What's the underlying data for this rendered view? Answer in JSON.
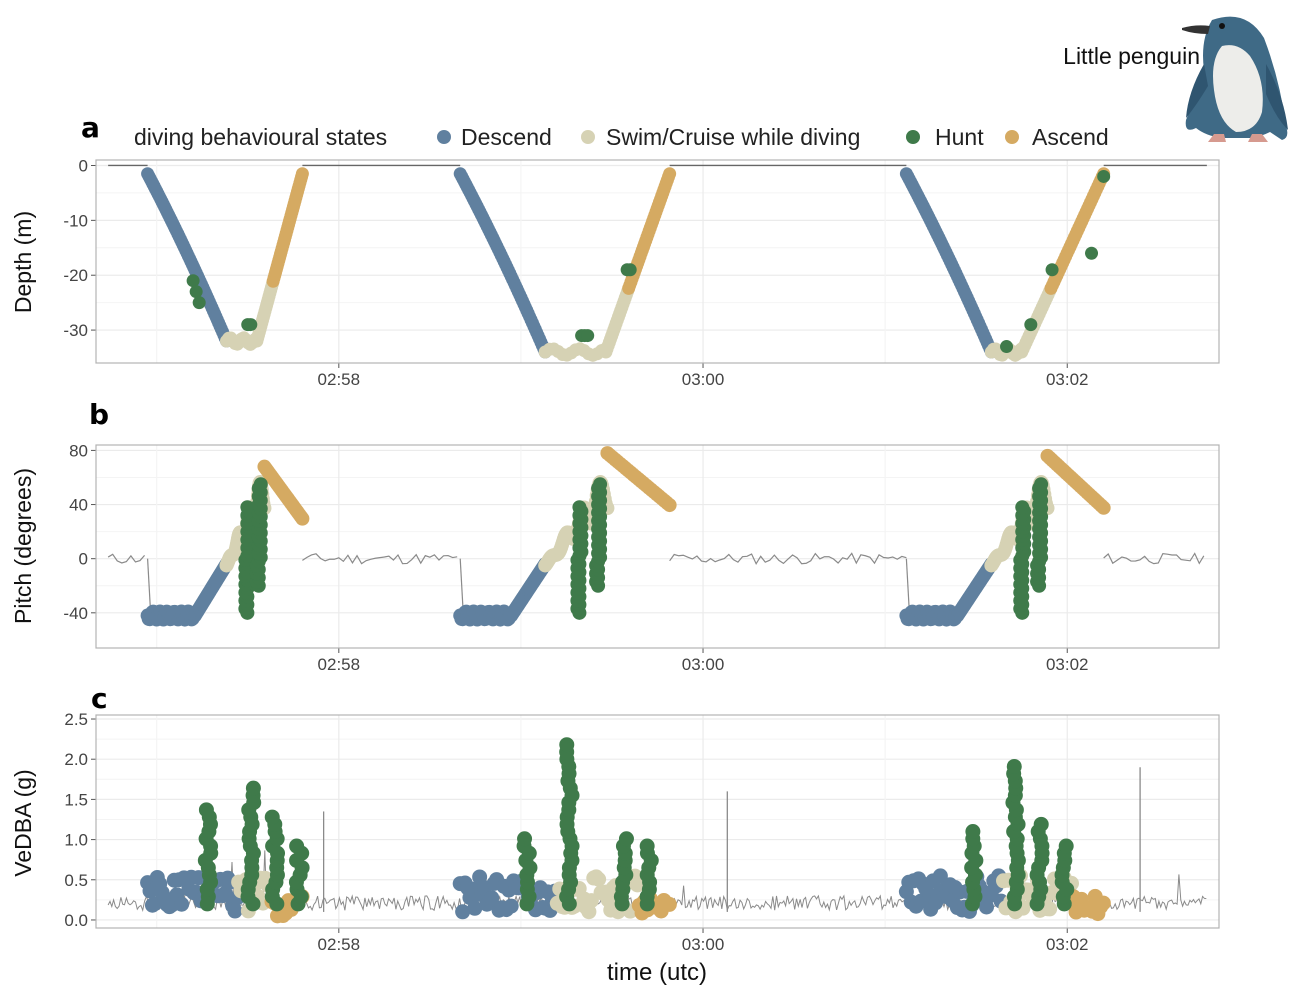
{
  "figure": {
    "legend_title": "diving behavioural states",
    "species_label": "Little penguin",
    "xlabel": "time (utc)"
  },
  "colors": {
    "Descend": "#60809f",
    "Swim/Cruise while diving": "#d6d2b4",
    "Hunt": "#3f7a4a",
    "Ascend": "#d5aa62",
    "trace": "#8a8a8a",
    "grid": "#ebebeb",
    "border": "#b3b3b3"
  },
  "x_ticks": [
    "02:58",
    "03:00",
    "03:02"
  ],
  "chart_data": [
    {
      "panel": "a",
      "type": "scatter",
      "ylabel": "Depth (m)",
      "ylim": [
        -36,
        1
      ],
      "yticks": [
        0,
        -10,
        -20,
        -30
      ],
      "xlim": [
        "02:56:40",
        "03:02:50"
      ],
      "legend": [
        "Descend",
        "Swim/Cruise while diving",
        "Hunt",
        "Ascend"
      ],
      "legend_position": "top",
      "surface_trace": [
        [
          0,
          0
        ],
        [
          1,
          0
        ],
        [
          2,
          0
        ],
        [
          3,
          0
        ],
        [
          4,
          0
        ],
        [
          5,
          0
        ]
      ],
      "dives": [
        {
          "start": "02:56:57",
          "bottom_start": "02:57:23",
          "bottom_end": "02:57:33",
          "end": "02:57:48",
          "max_depth": -32,
          "hunt_points": [
            [
              "02:57:12",
              -21
            ],
            [
              "02:57:13",
              -23
            ],
            [
              "02:57:14",
              -25
            ],
            [
              "02:57:30",
              -29
            ],
            [
              "02:57:31",
              -29
            ]
          ]
        },
        {
          "start": "02:58:40",
          "bottom_start": "02:59:08",
          "bottom_end": "02:59:28",
          "end": "02:59:49",
          "max_depth": -34,
          "hunt_points": [
            [
              "02:59:20",
              -31
            ],
            [
              "02:59:21",
              -31
            ],
            [
              "02:59:22",
              -31
            ],
            [
              "02:59:35",
              -19
            ],
            [
              "02:59:36",
              -19
            ]
          ]
        },
        {
          "start": "03:01:07",
          "bottom_start": "03:01:35",
          "bottom_end": "03:01:45",
          "end": "03:02:12",
          "max_depth": -34,
          "hunt_points": [
            [
              "03:01:40",
              -33
            ],
            [
              "03:01:48",
              -29
            ],
            [
              "03:01:55",
              -19
            ],
            [
              "03:02:08",
              -16
            ],
            [
              "03:02:12",
              -2
            ]
          ]
        }
      ]
    },
    {
      "panel": "b",
      "type": "scatter",
      "ylabel": "Pitch (degrees)",
      "ylim": [
        -66,
        84
      ],
      "yticks": [
        80,
        40,
        0,
        -40
      ],
      "xlim": [
        "02:56:40",
        "03:02:50"
      ]
    },
    {
      "panel": "c",
      "type": "scatter",
      "ylabel": "VeDBA (g)",
      "ylim": [
        -0.1,
        2.55
      ],
      "yticks": [
        0.0,
        0.5,
        1.0,
        1.5,
        2.0,
        2.5
      ],
      "ytick_labels": [
        "0.0",
        "0.5",
        "1.0",
        "1.5",
        "2.0",
        "2.5"
      ],
      "xlim": [
        "02:56:40",
        "03:02:50"
      ],
      "hunt_peaks": [
        1.5,
        1.65,
        2.4,
        2.2,
        2.0
      ]
    }
  ]
}
